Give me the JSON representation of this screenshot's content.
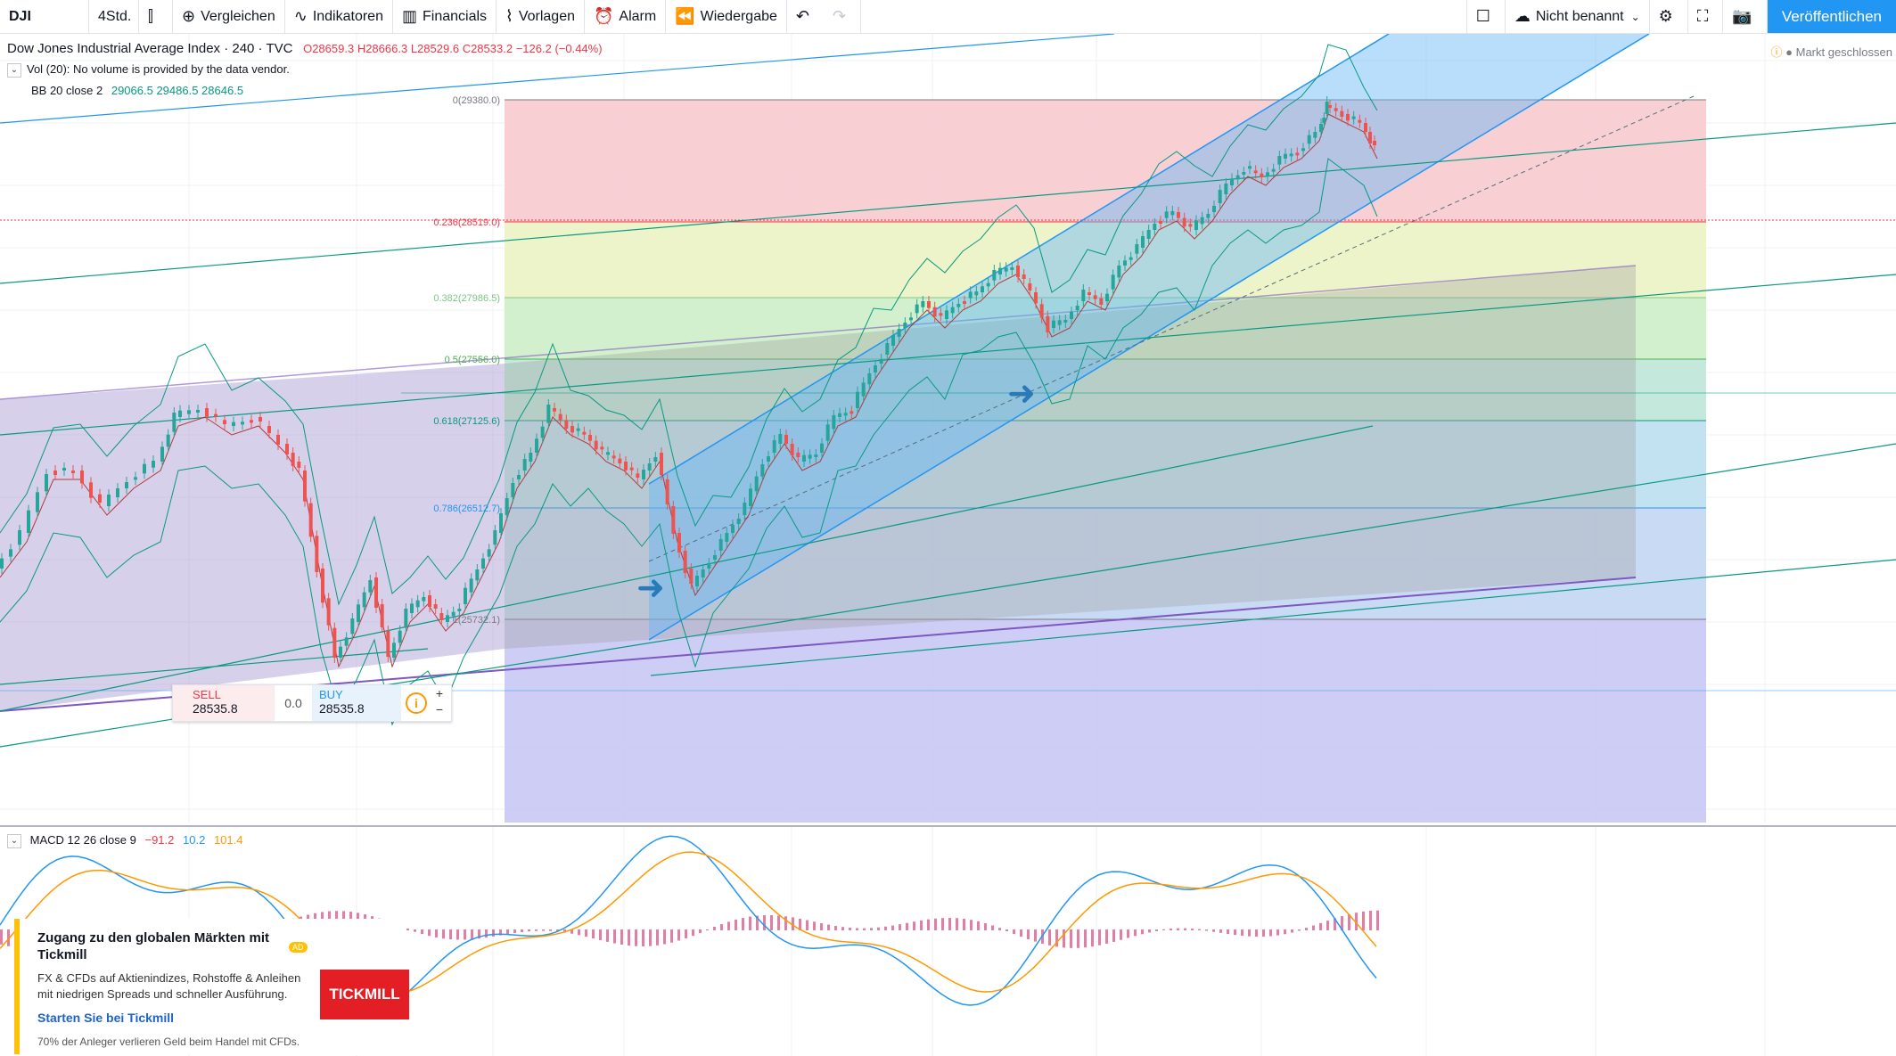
{
  "toolbar": {
    "symbol": "DJI",
    "interval": "4Std.",
    "compare": "Vergleichen",
    "indicators": "Indikatoren",
    "financials": "Financials",
    "templates": "Vorlagen",
    "alert": "Alarm",
    "replay": "Wiedergabe",
    "layout_name": "Nicht benannt",
    "publish": "Veröffentlichen"
  },
  "legend": {
    "title": "Dow Jones Industrial Average Index · 240 · TVC",
    "open": "O28659.3",
    "high": "H28666.3",
    "low": "L28529.6",
    "close": "C28533.2",
    "change": "−126.2 (−0.44%)",
    "vol": "Vol (20): No volume is provided by the data vendor.",
    "bb_label": "BB 20 close 2",
    "bb_values": "29066.5  29486.5  28646.5"
  },
  "market_status": "Markt geschlossen",
  "fib_levels": [
    {
      "label": "0(29380.0)",
      "color": "#787b86"
    },
    {
      "label": "0.236(28519.0)",
      "color": "#f23645"
    },
    {
      "label": "0.382(27986.5)",
      "color": "#81c784"
    },
    {
      "label": "0.5(27556.0)",
      "color": "#4caf50"
    },
    {
      "label": "0.618(27125.6)",
      "color": "#089981"
    },
    {
      "label": "0.786(26512.7)",
      "color": "#2196f3"
    },
    {
      "label": "1(25732.1)",
      "color": "#787b86"
    }
  ],
  "trade": {
    "sell_label": "SELL",
    "sell_price": "28535.8",
    "spread": "0.0",
    "buy_label": "BUY",
    "buy_price": "28535.8",
    "plus": "+",
    "minus": "−"
  },
  "macd": {
    "label": "MACD 12 26 close 9",
    "v1": "−91.2",
    "v2": "10.2",
    "v3": "101.4"
  },
  "ad": {
    "title": "Zugang zu den globalen Märkten mit Tickmill",
    "badge": "AD",
    "text": "FX & CFDs auf Aktienindizes, Rohstoffe & Anleihen mit niedrigen Spreads und schneller Ausführung.",
    "link": "Starten Sie bei Tickmill",
    "disclaimer": "70% der Anleger verlieren Geld beim Handel mit CFDs.",
    "logo": "TICKMILL"
  },
  "colors": {
    "up": "#26a69a",
    "down": "#ef5350",
    "accent": "#2196f3"
  }
}
